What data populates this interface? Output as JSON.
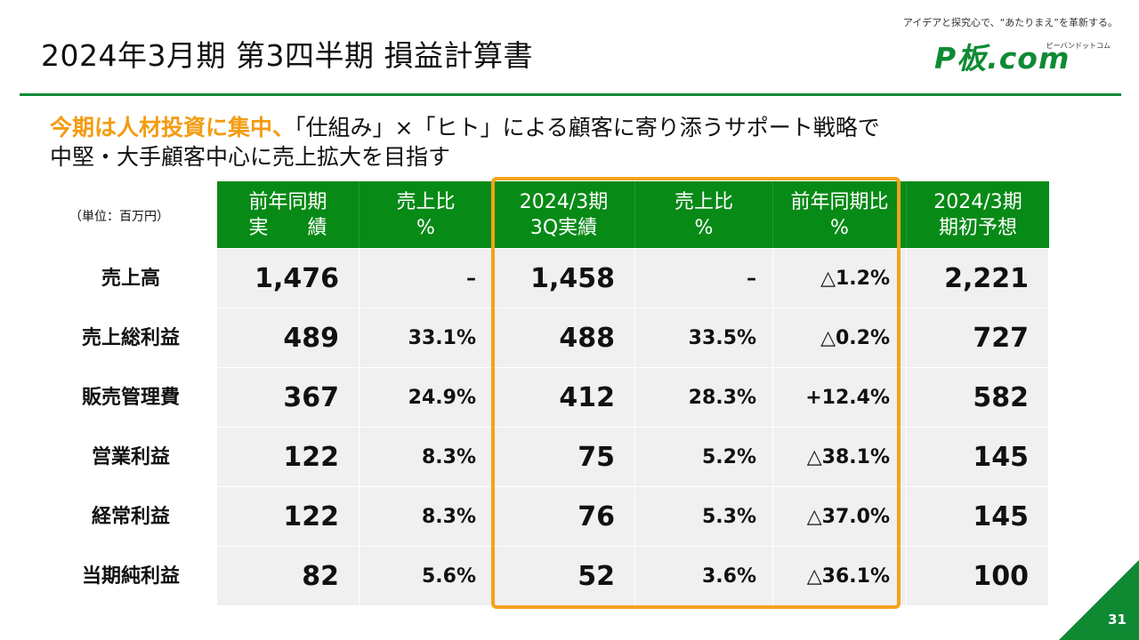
{
  "header": {
    "title": "2024年3月期 第3四半期 損益計算書",
    "tagline": "アイデアと探究心で、“あたりまえ”を革新する。",
    "logo_text": "P板.com",
    "logo_kana": "ピーバンドットコム"
  },
  "lead": {
    "emphasis": "今期は人材投資に集中、",
    "text1": "「仕組み」×「ヒト」による顧客に寄り添うサポート戦略で",
    "text2": "中堅・大手顧客中心に売上拡大を目指す"
  },
  "table": {
    "unit": "（単位：百万円）",
    "headers": [
      [
        "前年同期",
        "実　　績"
      ],
      [
        "売上比",
        "%"
      ],
      [
        "2024/3期",
        "3Q実績"
      ],
      [
        "売上比",
        "%"
      ],
      [
        "前年同期比",
        "%"
      ],
      [
        "2024/3期",
        "期初予想"
      ]
    ],
    "rows": [
      {
        "label": "売上高",
        "values": [
          "1,476",
          "–",
          "1,458",
          "–",
          "△1.2%",
          "2,221"
        ]
      },
      {
        "label": "売上総利益",
        "values": [
          "489",
          "33.1%",
          "488",
          "33.5%",
          "△0.2%",
          "727"
        ]
      },
      {
        "label": "販売管理費",
        "values": [
          "367",
          "24.9%",
          "412",
          "28.3%",
          "+12.4%",
          "582"
        ]
      },
      {
        "label": "営業利益",
        "values": [
          "122",
          "8.3%",
          "75",
          "5.2%",
          "△38.1%",
          "145"
        ]
      },
      {
        "label": "経常利益",
        "values": [
          "122",
          "8.3%",
          "76",
          "5.3%",
          "△37.0%",
          "145"
        ]
      },
      {
        "label": "当期純利益",
        "values": [
          "82",
          "5.6%",
          "52",
          "3.6%",
          "△36.1%",
          "100"
        ]
      }
    ]
  },
  "colors": {
    "green": "#0f8a33",
    "header_green": "#088a17",
    "orange": "#f5a31a",
    "cell_bg": "#f0f0f0"
  },
  "footer": {
    "page_number": "31"
  }
}
